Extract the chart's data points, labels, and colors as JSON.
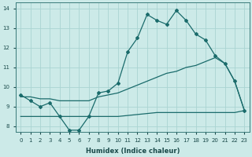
{
  "xlabel": "Humidex (Indice chaleur)",
  "xlim": [
    -0.5,
    23.5
  ],
  "ylim": [
    7.7,
    14.3
  ],
  "xticks": [
    0,
    1,
    2,
    3,
    4,
    5,
    6,
    7,
    8,
    9,
    10,
    11,
    12,
    13,
    14,
    15,
    16,
    17,
    18,
    19,
    20,
    21,
    22,
    23
  ],
  "yticks": [
    8,
    9,
    10,
    11,
    12,
    13,
    14
  ],
  "bg_color": "#cceae8",
  "grid_color": "#aad4d2",
  "line_color": "#1a6b6b",
  "line1_x": [
    0,
    1,
    2,
    3,
    4,
    5,
    6,
    7,
    8,
    9,
    10,
    11,
    12,
    13,
    14,
    15,
    16,
    17,
    18,
    19,
    20,
    21,
    22,
    23
  ],
  "line1_y": [
    9.6,
    9.3,
    9.0,
    9.2,
    8.5,
    7.8,
    7.8,
    8.5,
    9.7,
    9.8,
    10.2,
    11.8,
    12.5,
    13.7,
    13.4,
    13.2,
    13.9,
    13.4,
    12.7,
    12.4,
    11.6,
    11.2,
    10.3,
    8.8
  ],
  "line2_x": [
    0,
    1,
    2,
    3,
    4,
    5,
    6,
    7,
    8,
    9,
    10,
    11,
    12,
    13,
    14,
    15,
    16,
    17,
    18,
    19,
    20,
    21,
    22,
    23
  ],
  "line2_y": [
    9.5,
    9.5,
    9.4,
    9.4,
    9.3,
    9.3,
    9.3,
    9.3,
    9.5,
    9.6,
    9.7,
    9.9,
    10.1,
    10.3,
    10.5,
    10.7,
    10.8,
    11.0,
    11.1,
    11.3,
    11.5,
    11.2,
    10.3,
    8.8
  ],
  "line3_x": [
    0,
    1,
    2,
    3,
    4,
    5,
    6,
    7,
    8,
    9,
    10,
    11,
    12,
    13,
    14,
    15,
    16,
    17,
    18,
    19,
    20,
    21,
    22,
    23
  ],
  "line3_y": [
    8.5,
    8.5,
    8.5,
    8.5,
    8.5,
    8.5,
    8.5,
    8.5,
    8.5,
    8.5,
    8.5,
    8.55,
    8.6,
    8.65,
    8.7,
    8.7,
    8.7,
    8.7,
    8.7,
    8.7,
    8.7,
    8.7,
    8.7,
    8.8
  ]
}
